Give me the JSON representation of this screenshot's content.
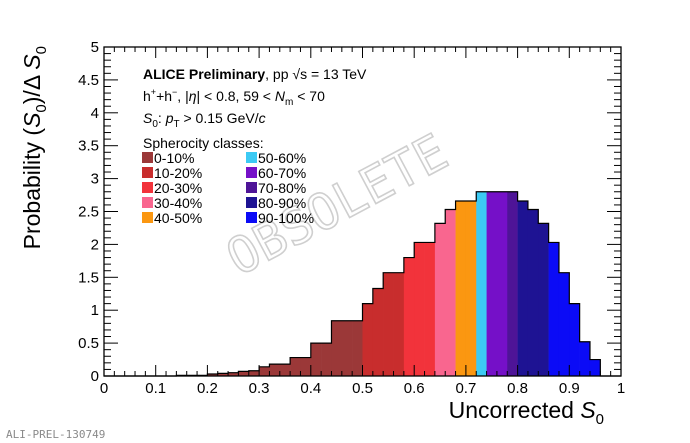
{
  "chart_data": {
    "type": "bar",
    "xlabel_text": "Uncorrected",
    "xlabel_sym": "S",
    "xlabel_sub": "0",
    "ylabel_prefix": "Probability (",
    "ylabel_sym": "S",
    "ylabel_sub": "0",
    "ylabel_suffix": ")/Δ ",
    "ylabel_sym2": "S",
    "ylabel_sub2": "0",
    "xlim": [
      0,
      1
    ],
    "ylim": [
      0,
      5
    ],
    "x_ticks": [
      "0",
      "0.1",
      "0.2",
      "0.3",
      "0.4",
      "0.5",
      "0.6",
      "0.7",
      "0.8",
      "0.9",
      "1"
    ],
    "y_ticks": [
      "0",
      "0.5",
      "1",
      "1.5",
      "2",
      "2.5",
      "3",
      "3.5",
      "4",
      "4.5",
      "5"
    ],
    "bin_width": 0.02,
    "bins": [
      {
        "x": 0.0,
        "y": 0.0,
        "class": "0-10%"
      },
      {
        "x": 0.02,
        "y": 0.0,
        "class": "0-10%"
      },
      {
        "x": 0.04,
        "y": 0.0,
        "class": "0-10%"
      },
      {
        "x": 0.06,
        "y": 0.0,
        "class": "0-10%"
      },
      {
        "x": 0.08,
        "y": 0.0,
        "class": "0-10%"
      },
      {
        "x": 0.1,
        "y": 0.0,
        "class": "0-10%"
      },
      {
        "x": 0.12,
        "y": 0.0,
        "class": "0-10%"
      },
      {
        "x": 0.14,
        "y": 0.01,
        "class": "0-10%"
      },
      {
        "x": 0.16,
        "y": 0.01,
        "class": "0-10%"
      },
      {
        "x": 0.18,
        "y": 0.01,
        "class": "0-10%"
      },
      {
        "x": 0.2,
        "y": 0.03,
        "class": "0-10%"
      },
      {
        "x": 0.22,
        "y": 0.04,
        "class": "0-10%"
      },
      {
        "x": 0.24,
        "y": 0.05,
        "class": "0-10%"
      },
      {
        "x": 0.26,
        "y": 0.07,
        "class": "0-10%"
      },
      {
        "x": 0.28,
        "y": 0.08,
        "class": "0-10%"
      },
      {
        "x": 0.3,
        "y": 0.14,
        "class": "0-10%"
      },
      {
        "x": 0.32,
        "y": 0.18,
        "class": "0-10%"
      },
      {
        "x": 0.34,
        "y": 0.18,
        "class": "0-10%"
      },
      {
        "x": 0.36,
        "y": 0.28,
        "class": "0-10%"
      },
      {
        "x": 0.38,
        "y": 0.28,
        "class": "0-10%"
      },
      {
        "x": 0.4,
        "y": 0.5,
        "class": "0-10%"
      },
      {
        "x": 0.42,
        "y": 0.5,
        "class": "0-10%"
      },
      {
        "x": 0.44,
        "y": 0.84,
        "class": "0-10%"
      },
      {
        "x": 0.46,
        "y": 0.84,
        "class": "0-10%"
      },
      {
        "x": 0.48,
        "y": 0.84,
        "class": "0-10%"
      },
      {
        "x": 0.5,
        "y": 1.1,
        "class": "10-20%"
      },
      {
        "x": 0.52,
        "y": 1.33,
        "class": "10-20%"
      },
      {
        "x": 0.54,
        "y": 1.57,
        "class": "10-20%"
      },
      {
        "x": 0.56,
        "y": 1.57,
        "class": "10-20%"
      },
      {
        "x": 0.58,
        "y": 1.8,
        "class": "20-30%"
      },
      {
        "x": 0.6,
        "y": 2.03,
        "class": "20-30%"
      },
      {
        "x": 0.62,
        "y": 2.03,
        "class": "20-30%"
      },
      {
        "x": 0.64,
        "y": 2.32,
        "class": "30-40%"
      },
      {
        "x": 0.66,
        "y": 2.53,
        "class": "30-40%"
      },
      {
        "x": 0.68,
        "y": 2.66,
        "class": "40-50%"
      },
      {
        "x": 0.7,
        "y": 2.66,
        "class": "40-50%"
      },
      {
        "x": 0.72,
        "y": 2.8,
        "class": "50-60%"
      },
      {
        "x": 0.74,
        "y": 2.8,
        "class": "60-70%"
      },
      {
        "x": 0.76,
        "y": 2.8,
        "class": "60-70%"
      },
      {
        "x": 0.78,
        "y": 2.8,
        "class": "70-80%"
      },
      {
        "x": 0.8,
        "y": 2.66,
        "class": "80-90%"
      },
      {
        "x": 0.82,
        "y": 2.53,
        "class": "80-90%"
      },
      {
        "x": 0.84,
        "y": 2.32,
        "class": "80-90%"
      },
      {
        "x": 0.86,
        "y": 2.03,
        "class": "90-100%"
      },
      {
        "x": 0.88,
        "y": 1.57,
        "class": "90-100%"
      },
      {
        "x": 0.9,
        "y": 1.1,
        "class": "90-100%"
      },
      {
        "x": 0.92,
        "y": 0.52,
        "class": "90-100%"
      },
      {
        "x": 0.94,
        "y": 0.25,
        "class": "90-100%"
      },
      {
        "x": 0.96,
        "y": 0.0,
        "class": "90-100%"
      },
      {
        "x": 0.98,
        "y": 0.0,
        "class": "90-100%"
      }
    ],
    "legend_title": "Spherocity classes:",
    "legend_placement": "top-left",
    "classes": [
      {
        "label": "0-10%",
        "color": "#9b3838"
      },
      {
        "label": "10-20%",
        "color": "#c82d2d"
      },
      {
        "label": "20-30%",
        "color": "#f2333b"
      },
      {
        "label": "30-40%",
        "color": "#f9668f"
      },
      {
        "label": "40-50%",
        "color": "#fb9711"
      },
      {
        "label": "50-60%",
        "color": "#3ccaf4"
      },
      {
        "label": "60-70%",
        "color": "#7510c8"
      },
      {
        "label": "70-80%",
        "color": "#4e1497"
      },
      {
        "label": "80-90%",
        "color": "#1e1393"
      },
      {
        "label": "90-100%",
        "color": "#0b0bf6"
      }
    ],
    "grid": false
  },
  "info": {
    "alice_prefix": "ALICE Preliminary",
    "energy": ", pp √s = 13 TeV",
    "hadrons": "h",
    "hadron_sup1": "+",
    "hadron_plus": "+h",
    "hadron_sup2": "−",
    "cuts_a": ", |",
    "cuts_eta": "η",
    "cuts_b": "| < 0.8, 59 < ",
    "cuts_n": "N",
    "cuts_nsub": "m",
    "cuts_c": " < 70",
    "s0_sym": "S",
    "s0_sub": "0",
    "s0_colon": ": ",
    "pt_sym": "p",
    "pt_sub": "T",
    "pt_rest": " > 0.15 GeV/",
    "pt_c": "c"
  },
  "watermark": "OBSOLETE",
  "footer_id": "ALI-PREL-130749"
}
